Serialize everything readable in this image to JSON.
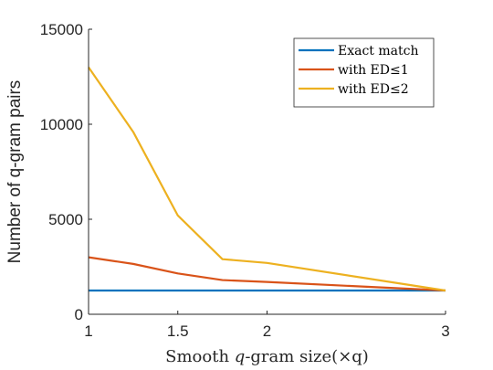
{
  "chart_data": {
    "type": "line",
    "title": "",
    "xlabel": {
      "prefix": "Smooth ",
      "italic": "q",
      "suffix": "-gram size(×q)"
    },
    "ylabel": "Number of q-gram pairs",
    "xlim": [
      1,
      3
    ],
    "ylim": [
      0,
      15000
    ],
    "xticks": [
      1,
      1.5,
      2,
      3
    ],
    "xtick_labels": [
      "1",
      "1.5",
      "2",
      "3"
    ],
    "yticks": [
      0,
      5000,
      10000,
      15000
    ],
    "ytick_labels": [
      "0",
      "5000",
      "10000",
      "15000"
    ],
    "grid": false,
    "legend_position": "top-right",
    "series": [
      {
        "name": "Exact match",
        "color": "#0072BD",
        "x": [
          1,
          1.25,
          1.5,
          1.75,
          2,
          3
        ],
        "y": [
          1250,
          1250,
          1250,
          1250,
          1250,
          1250
        ]
      },
      {
        "name": "with ED≤1",
        "color": "#D95319",
        "x": [
          1,
          1.25,
          1.5,
          1.75,
          2,
          3
        ],
        "y": [
          3000,
          2650,
          2150,
          1800,
          1700,
          1250
        ]
      },
      {
        "name": "with ED≤2",
        "color": "#EDB120",
        "x": [
          1,
          1.25,
          1.5,
          1.75,
          2,
          3
        ],
        "y": [
          13000,
          9600,
          5200,
          2900,
          2700,
          1250
        ]
      }
    ]
  }
}
